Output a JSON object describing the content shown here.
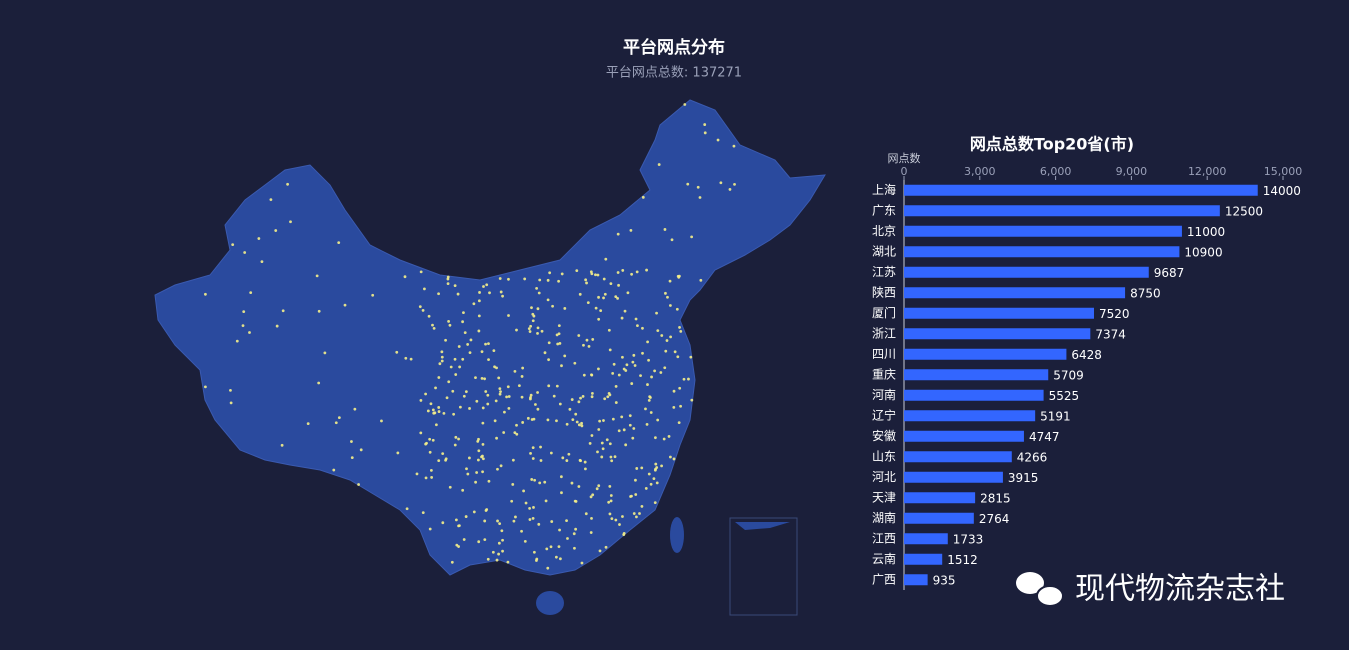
{
  "title": "平台网点分布",
  "subtitle": "平台网点总数: 137271",
  "watermark": "现代物流杂志社",
  "chart_data": {
    "type": "bar",
    "orientation": "horizontal",
    "title": "网点总数Top20省(市)",
    "x_label": "网点数",
    "categories": [
      "上海",
      "广东",
      "北京",
      "湖北",
      "江苏",
      "陕西",
      "厦门",
      "浙江",
      "四川",
      "重庆",
      "河南",
      "辽宁",
      "安徽",
      "山东",
      "河北",
      "天津",
      "湖南",
      "江西",
      "云南",
      "广西"
    ],
    "values": [
      14000,
      12500,
      11000,
      10900,
      9687,
      8750,
      7520,
      7374,
      6428,
      5709,
      5525,
      5191,
      4747,
      4266,
      3915,
      2815,
      2764,
      1733,
      1512,
      935
    ],
    "color": "#3366ff",
    "xlim": [
      0,
      15000
    ],
    "xticks": [
      0,
      {
        "value": 3000,
        "label": "3,000"
      },
      {
        "value": 6000,
        "label": "6,000"
      },
      {
        "value": 9000,
        "label": "9,000"
      },
      {
        "value": 12000,
        "label": "12,000"
      },
      {
        "value": 15000,
        "label": "15,000"
      }
    ]
  }
}
